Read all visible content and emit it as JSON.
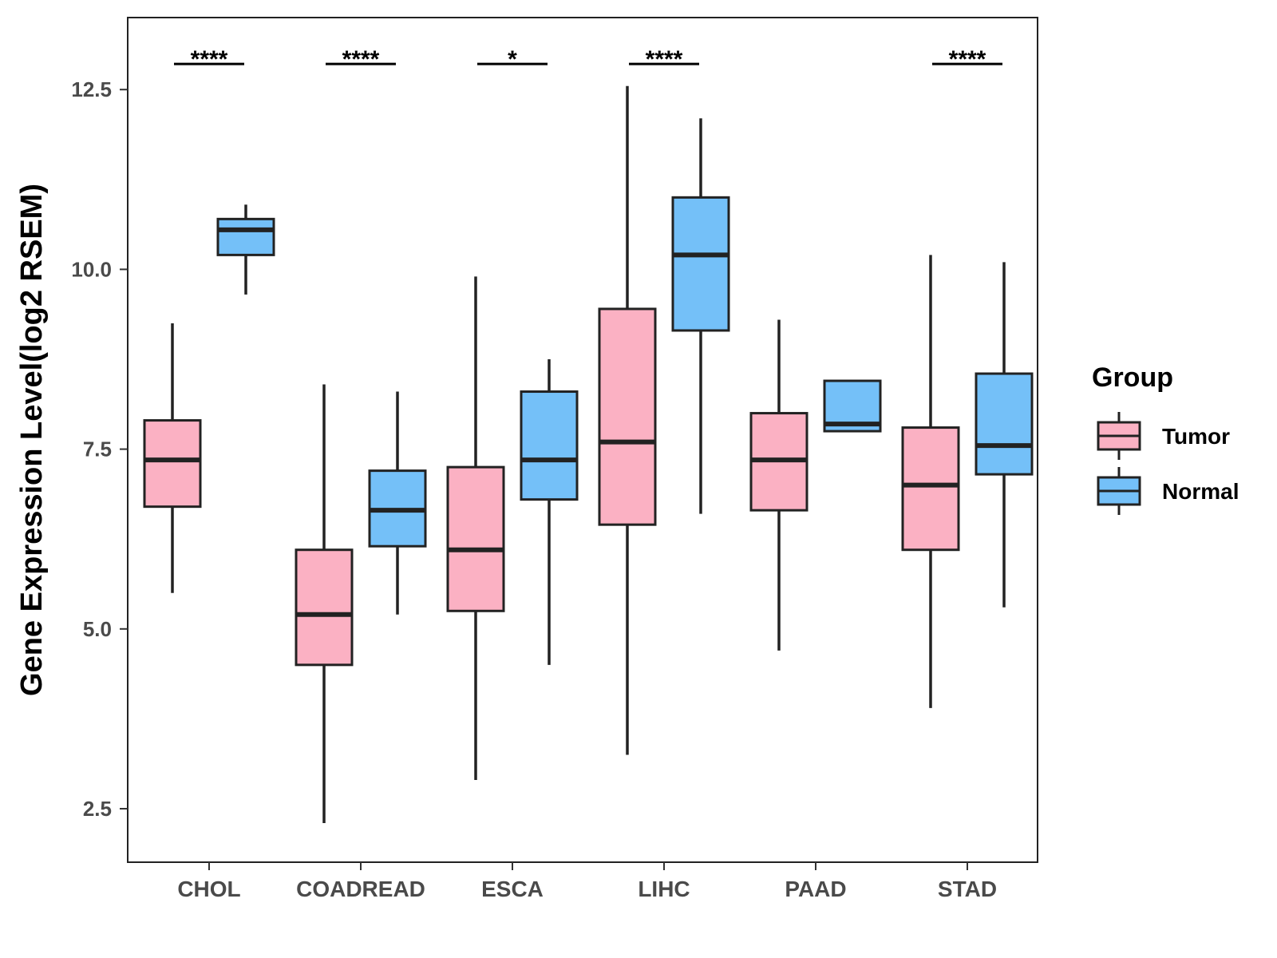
{
  "chart_data": {
    "type": "boxplot",
    "title": "",
    "xlabel": "",
    "ylabel": "Gene Expression Level(log2 RSEM)",
    "ylim": [
      1.75,
      13.5
    ],
    "yticks": [
      2.5,
      5.0,
      7.5,
      10.0,
      12.5
    ],
    "ytick_labels": [
      "2.5",
      "5.0",
      "7.5",
      "10.0",
      "12.5"
    ],
    "grid": false,
    "categories": [
      "CHOL",
      "COADREAD",
      "ESCA",
      "LIHC",
      "PAAD",
      "STAD"
    ],
    "series": [
      {
        "name": "Tumor",
        "color": "#FBB1C3",
        "boxes": [
          {
            "whislo": 5.5,
            "q1": 6.7,
            "med": 7.35,
            "q3": 7.9,
            "whishi": 9.25
          },
          {
            "whislo": 2.3,
            "q1": 4.5,
            "med": 5.2,
            "q3": 6.1,
            "whishi": 8.4
          },
          {
            "whislo": 2.9,
            "q1": 5.25,
            "med": 6.1,
            "q3": 7.25,
            "whishi": 9.9
          },
          {
            "whislo": 3.25,
            "q1": 6.45,
            "med": 7.6,
            "q3": 9.45,
            "whishi": 12.55
          },
          {
            "whislo": 4.7,
            "q1": 6.65,
            "med": 7.35,
            "q3": 8.0,
            "whishi": 9.3
          },
          {
            "whislo": 3.9,
            "q1": 6.1,
            "med": 7.0,
            "q3": 7.8,
            "whishi": 10.2
          }
        ]
      },
      {
        "name": "Normal",
        "color": "#74C0F8",
        "boxes": [
          {
            "whislo": 9.65,
            "q1": 10.2,
            "med": 10.55,
            "q3": 10.7,
            "whishi": 10.9
          },
          {
            "whislo": 5.2,
            "q1": 6.15,
            "med": 6.65,
            "q3": 7.2,
            "whishi": 8.3
          },
          {
            "whislo": 4.5,
            "q1": 6.8,
            "med": 7.35,
            "q3": 8.3,
            "whishi": 8.75
          },
          {
            "whislo": 6.6,
            "q1": 9.15,
            "med": 10.2,
            "q3": 11.0,
            "whishi": 12.1
          },
          {
            "whislo": 7.75,
            "q1": 7.75,
            "med": 7.85,
            "q3": 8.45,
            "whishi": 8.45
          },
          {
            "whislo": 5.3,
            "q1": 7.15,
            "med": 7.55,
            "q3": 8.55,
            "whishi": 10.1
          }
        ]
      }
    ],
    "significance": [
      {
        "category": "CHOL",
        "label": "****"
      },
      {
        "category": "COADREAD",
        "label": "****"
      },
      {
        "category": "ESCA",
        "label": "*"
      },
      {
        "category": "LIHC",
        "label": "****"
      },
      {
        "category": "PAAD",
        "label": ""
      },
      {
        "category": "STAD",
        "label": "****"
      }
    ],
    "significance_y": 13.0,
    "legend": {
      "title": "Group",
      "position": "right",
      "entries": [
        "Tumor",
        "Normal"
      ]
    }
  }
}
